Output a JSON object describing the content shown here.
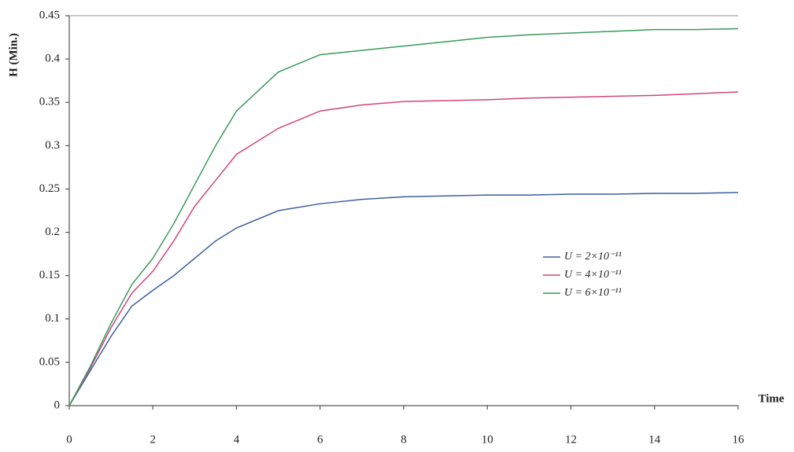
{
  "chart_data": {
    "type": "line",
    "y_label": "H (Min.)",
    "x_label": "Time",
    "x": [
      0,
      0.5,
      1,
      1.5,
      2,
      2.5,
      3,
      3.5,
      4,
      5,
      6,
      7,
      8,
      9,
      10,
      11,
      12,
      13,
      14,
      15,
      16
    ],
    "series": [
      {
        "name": "U = 2×10⁻¹¹",
        "color": "#3d5f9e",
        "values": [
          0,
          0.04,
          0.08,
          0.115,
          0.133,
          0.15,
          0.17,
          0.19,
          0.205,
          0.225,
          0.233,
          0.238,
          0.241,
          0.242,
          0.243,
          0.243,
          0.244,
          0.244,
          0.245,
          0.245,
          0.246
        ]
      },
      {
        "name": "U = 4×10⁻¹¹",
        "color": "#d0457f",
        "values": [
          0,
          0.043,
          0.09,
          0.13,
          0.155,
          0.19,
          0.23,
          0.26,
          0.29,
          0.32,
          0.34,
          0.347,
          0.351,
          0.352,
          0.353,
          0.355,
          0.356,
          0.357,
          0.358,
          0.36,
          0.362
        ]
      },
      {
        "name": "U = 6×10⁻¹¹",
        "color": "#3a9a5a",
        "values": [
          0,
          0.045,
          0.095,
          0.14,
          0.17,
          0.21,
          0.255,
          0.3,
          0.34,
          0.385,
          0.405,
          0.41,
          0.415,
          0.42,
          0.425,
          0.428,
          0.43,
          0.432,
          0.434,
          0.434,
          0.435
        ]
      }
    ],
    "xlim": [
      0,
      16
    ],
    "xticks": [
      0,
      2,
      4,
      6,
      8,
      10,
      12,
      14,
      16
    ],
    "ylim": [
      0,
      0.45
    ],
    "yticks": [
      0,
      0.05,
      0.1,
      0.15,
      0.2,
      0.25,
      0.3,
      0.35,
      0.4,
      0.45
    ],
    "grid": false
  }
}
